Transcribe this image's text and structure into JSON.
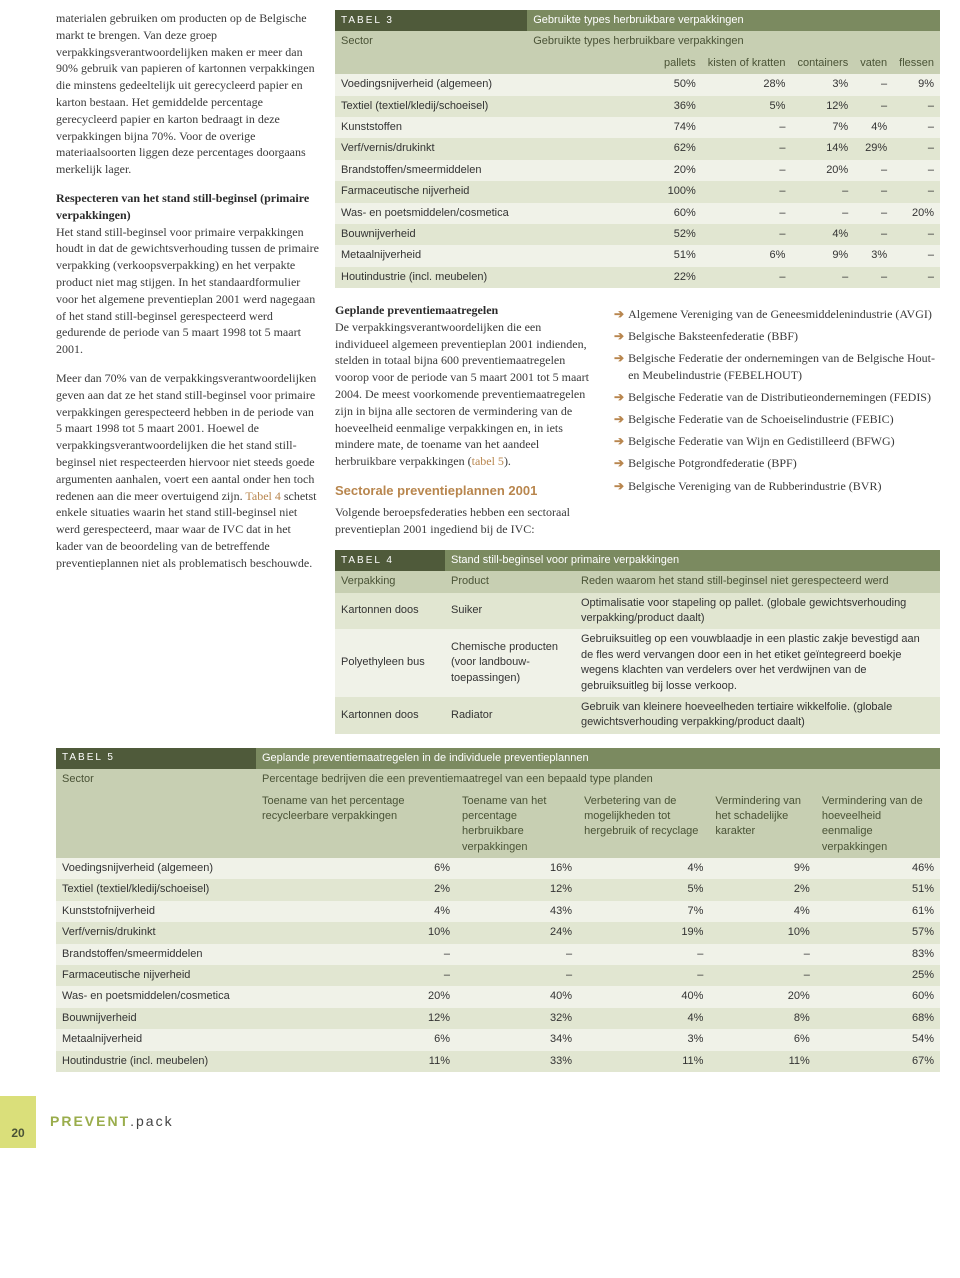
{
  "text": {
    "para1": "materialen gebruiken om producten op de Belgische markt te brengen. Van deze groep verpakkingsverantwoordelijken maken er meer dan 90% gebruik van papieren of kartonnen verpakkingen die minstens gedeeltelijk uit gerecycleerd papier en karton bestaan. Het gemiddelde percentage gerecycleerd papier en karton bedraagt in deze verpakkingen bijna 70%. Voor de overige materiaalsoorten liggen deze percentages doorgaans merkelijk lager.",
    "h1": "Respecteren van het stand still-beginsel (primaire verpakkingen)",
    "para2": "Het stand still-beginsel voor primaire verpakkingen houdt in dat de gewichtsverhouding tussen de primaire verpakking (verkoopsverpakking) en het verpakte product niet mag stijgen. In het standaardformulier voor het algemene preventieplan 2001 werd nagegaan of het stand still-beginsel gerespecteerd werd gedurende de periode van 5 maart 1998 tot 5 maart 2001.",
    "para3a": "Meer dan 70% van de verpakkingsverantwoordelijken geven aan dat ze het stand still-beginsel voor primaire verpakkingen gerespecteerd hebben in de periode van 5 maart 1998 tot 5 maart 2001. Hoewel de verpakkingsverantwoordelijken die het stand still-beginsel niet respecteerden hiervoor niet steeds goede argumenten aanhalen, voert een aantal onder hen toch redenen aan die meer overtuigend zijn. ",
    "t4link": "Tabel 4",
    "para3b": " schetst enkele situaties waarin het stand still-beginsel niet werd gerespecteerd, maar waar de IVC dat in het kader van de beoordeling van de betreffende preventieplannen niet als problematisch beschouwde.",
    "h2": "Geplande preventiemaatregelen",
    "para4a": "De verpakkingsverantwoordelijken die een individueel algemeen preventieplan 2001 indienden, stelden in totaal bijna 600 preventiemaatregelen voorop voor de periode van 5 maart 2001 tot 5 maart 2004. De meest voorkomende preventiemaatregelen zijn in bijna alle sectoren de vermindering van de hoeveelheid eenmalige verpakkingen en, in iets mindere mate, de toename van het aandeel herbruikbare verpakkingen (",
    "t5link": "tabel 5",
    "para4b": ").",
    "h3": "Sectorale preventieplannen 2001",
    "para5": "Volgende beroepsfederaties hebben een sectoraal preventieplan 2001 ingediend bij de IVC:"
  },
  "bullets": [
    "Algemene Vereniging van de Geneesmiddelenindustrie (AVGI)",
    "Belgische Baksteenfederatie (BBF)",
    "Belgische Federatie der ondernemingen van de Belgische Hout- en Meubelindustrie (FEBELHOUT)",
    "Belgische Federatie van de Distributieondernemingen (FEDIS)",
    "Belgische Federatie van de Schoeiselindustrie (FEBIC)",
    "Belgische Federatie van Wijn en Gedistilleerd (BFWG)",
    "Belgische Potgrondfederatie (BPF)",
    "Belgische Vereniging van de Rubberindustrie (BVR)"
  ],
  "table3": {
    "label": "TABEL 3",
    "title": "Gebruikte types herbruikbare verpakkingen",
    "hdr1": "Sector",
    "hdr_span": "Gebruikte types herbruikbare verpakkingen",
    "cols": [
      "pallets",
      "kisten of kratten",
      "containers",
      "vaten",
      "flessen"
    ],
    "rows": [
      [
        "Voedingsnijverheid (algemeen)",
        "50%",
        "28%",
        "3%",
        "–",
        "9%"
      ],
      [
        "Textiel (textiel/kledij/schoeisel)",
        "36%",
        "5%",
        "12%",
        "–",
        "–"
      ],
      [
        "Kunststoffen",
        "74%",
        "–",
        "7%",
        "4%",
        "–"
      ],
      [
        "Verf/vernis/drukinkt",
        "62%",
        "–",
        "14%",
        "29%",
        "–"
      ],
      [
        "Brandstoffen/smeermiddelen",
        "20%",
        "–",
        "20%",
        "–",
        "–"
      ],
      [
        "Farmaceutische nijverheid",
        "100%",
        "–",
        "–",
        "–",
        "–"
      ],
      [
        "Was- en poetsmiddelen/cosmetica",
        "60%",
        "–",
        "–",
        "–",
        "20%"
      ],
      [
        "Bouwnijverheid",
        "52%",
        "–",
        "4%",
        "–",
        "–"
      ],
      [
        "Metaalnijverheid",
        "51%",
        "6%",
        "9%",
        "3%",
        "–"
      ],
      [
        "Houtindustrie (incl. meubelen)",
        "22%",
        "–",
        "–",
        "–",
        "–"
      ]
    ]
  },
  "table4": {
    "label": "TABEL 4",
    "title": "Stand still-beginsel voor primaire verpakkingen",
    "hdr": [
      "Verpakking",
      "Product",
      "Reden waarom het stand still-beginsel niet gerespecteerd werd"
    ],
    "rows": [
      [
        "Kartonnen doos",
        "Suiker",
        "Optimalisatie voor stapeling op pallet. (globale gewichtsverhouding verpakking/product daalt)"
      ],
      [
        "Polyethyleen bus",
        "Chemische producten (voor landbouw-toepassingen)",
        "Gebruiksuitleg op een vouwblaadje in een plastic zakje bevestigd aan de fles werd vervangen door een in het etiket geïntegreerd boekje wegens klachten van verdelers over het verdwijnen van de gebruiksuitleg bij losse verkoop."
      ],
      [
        "Kartonnen doos",
        "Radiator",
        "Gebruik van kleinere hoeveelheden tertiaire wikkelfolie. (globale gewichtsverhouding verpakking/product daalt)"
      ]
    ]
  },
  "table5": {
    "label": "TABEL 5",
    "title": "Geplande preventiemaatregelen in de individuele preventieplannen",
    "hdr1": "Sector",
    "hdr_span": "Percentage bedrijven die een preventiemaatregel van een bepaald type planden",
    "cols": [
      "Toename van het percentage recycleerbare verpakkingen",
      "Toename van het percentage herbruikbare verpakkingen",
      "Verbetering van de mogelijkheden tot hergebruik of recyclage",
      "Vermindering van het schadelijke karakter",
      "Vermindering van de hoeveelheid eenmalige verpakkingen"
    ],
    "rows": [
      [
        "Voedingsnijverheid (algemeen)",
        "6%",
        "16%",
        "4%",
        "9%",
        "46%"
      ],
      [
        "Textiel (textiel/kledij/schoeisel)",
        "2%",
        "12%",
        "5%",
        "2%",
        "51%"
      ],
      [
        "Kunststofnijverheid",
        "4%",
        "43%",
        "7%",
        "4%",
        "61%"
      ],
      [
        "Verf/vernis/drukinkt",
        "10%",
        "24%",
        "19%",
        "10%",
        "57%"
      ],
      [
        "Brandstoffen/smeermiddelen",
        "–",
        "–",
        "–",
        "–",
        "83%"
      ],
      [
        "Farmaceutische nijverheid",
        "–",
        "–",
        "–",
        "–",
        "25%"
      ],
      [
        "Was- en poetsmiddelen/cosmetica",
        "20%",
        "40%",
        "40%",
        "20%",
        "60%"
      ],
      [
        "Bouwnijverheid",
        "12%",
        "32%",
        "4%",
        "8%",
        "68%"
      ],
      [
        "Metaalnijverheid",
        "6%",
        "34%",
        "3%",
        "6%",
        "54%"
      ],
      [
        "Houtindustrie (incl. meubelen)",
        "11%",
        "33%",
        "11%",
        "11%",
        "67%"
      ]
    ]
  },
  "footer": {
    "page": "20",
    "brand1": "PREVENT",
    "brand2": ".pack"
  }
}
